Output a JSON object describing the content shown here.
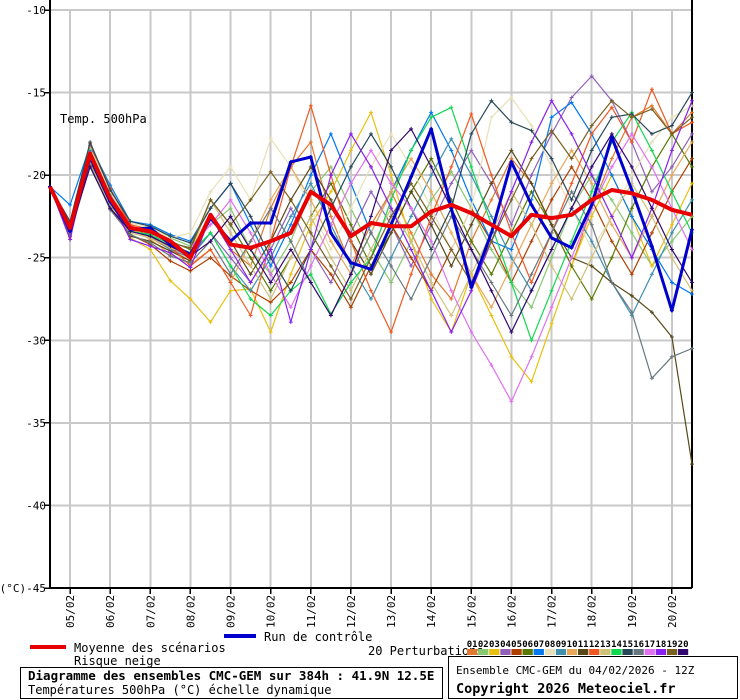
{
  "legend": {
    "mean_label": "Moyenne des scénarios",
    "risk_label": "Risque neige",
    "control_label": "Run de contrôle",
    "perturbations_label": "20 Perturbations"
  },
  "footer": {
    "left_line1": "Diagramme des ensembles CMC-GEM sur 384h : 41.9N 12.5E",
    "left_line2": "Températures 500hPa (°C) échelle dynamique",
    "right_line1": "Ensemble CMC-GEM du 04/02/2026 - 12Z",
    "right_line2": "Copyright 2026 Meteociel.fr"
  },
  "chart_style": {
    "grid_color": "#c9c9c9",
    "axis_color": "#000000",
    "background": "#ffffff",
    "mean_color": "#e80000",
    "control_color": "#0000cc"
  },
  "chart_data": {
    "type": "line",
    "title": "Temp. 500hPa",
    "ylabel_unit": "(°C)",
    "ylim": [
      -45,
      -10
    ],
    "y_ticks": [
      -10,
      -15,
      -20,
      -25,
      -30,
      -35,
      -40,
      -45
    ],
    "x_tick_labels": [
      "05/02",
      "06/02",
      "07/02",
      "08/02",
      "09/02",
      "10/02",
      "11/02",
      "12/02",
      "13/02",
      "14/02",
      "15/02",
      "16/02",
      "17/02",
      "18/02",
      "19/02",
      "20/02"
    ],
    "x_start": "04/02 12Z",
    "x_step_hours": 12,
    "n_points": 33,
    "grid": true,
    "legend_position": "bottom",
    "mean": {
      "name": "Moyenne des scénarios",
      "color": "#e80000",
      "values": [
        -20.7,
        -23.2,
        -18.7,
        -21.4,
        -23.2,
        -23.4,
        -24.0,
        -25.0,
        -22.4,
        -24.2,
        -24.4,
        -24.0,
        -23.5,
        -21.0,
        -21.8,
        -23.7,
        -22.9,
        -23.1,
        -23.1,
        -22.2,
        -21.8,
        -22.3,
        -23.0,
        -23.7,
        -22.4,
        -22.6,
        -22.4,
        -21.5,
        -20.9,
        -21.1,
        -21.5,
        -22.1,
        -22.4
      ]
    },
    "control": {
      "name": "Run de contrôle",
      "color": "#0000cc",
      "values": [
        -20.7,
        -23.4,
        -18.9,
        -21.6,
        -23.3,
        -23.2,
        -24.2,
        -24.8,
        -22.6,
        -24.0,
        -22.9,
        -22.9,
        -19.2,
        -18.9,
        -23.5,
        -25.3,
        -25.7,
        -23.0,
        -20.1,
        -17.2,
        -22.0,
        -26.8,
        -23.5,
        -19.2,
        -21.8,
        -23.8,
        -24.4,
        -21.8,
        -17.7,
        -20.9,
        -24.3,
        -28.2,
        -23.3
      ]
    },
    "members": [
      {
        "id": "01",
        "color": "#e07830",
        "values": [
          -20.7,
          -23.0,
          -18.3,
          -21.0,
          -23.0,
          -23.8,
          -24.5,
          -25.2,
          -22.5,
          -24.5,
          -25.5,
          -22.0,
          -19.5,
          -18.0,
          -22.5,
          -25.5,
          -23.0,
          -21.0,
          -23.5,
          -26.0,
          -27.5,
          -24.0,
          -21.5,
          -19.0,
          -20.5,
          -23.0,
          -25.5,
          -22.0,
          -19.0,
          -16.5,
          -15.8,
          -17.5,
          -16.2
        ]
      },
      {
        "id": "02",
        "color": "#88c870",
        "values": [
          -20.7,
          -23.5,
          -18.8,
          -21.8,
          -23.5,
          -23.0,
          -23.8,
          -24.3,
          -23.0,
          -22.0,
          -24.5,
          -26.0,
          -24.0,
          -21.0,
          -19.5,
          -22.0,
          -24.5,
          -26.5,
          -24.0,
          -21.5,
          -19.8,
          -22.0,
          -24.5,
          -26.5,
          -28.0,
          -25.0,
          -22.0,
          -20.0,
          -21.5,
          -23.5,
          -25.5,
          -24.0,
          -22.5
        ]
      },
      {
        "id": "03",
        "color": "#e8c010",
        "values": [
          -20.7,
          -23.8,
          -19.0,
          -21.6,
          -23.8,
          -24.5,
          -26.4,
          -27.5,
          -28.9,
          -27.0,
          -26.9,
          -29.5,
          -26.0,
          -23.0,
          -21.0,
          -18.5,
          -16.2,
          -20.0,
          -24.0,
          -27.5,
          -29.5,
          -26.0,
          -28.5,
          -31.0,
          -32.5,
          -29.0,
          -25.5,
          -22.5,
          -20.0,
          -22.5,
          -25.5,
          -23.0,
          -20.5
        ]
      },
      {
        "id": "04",
        "color": "#9060b8",
        "values": [
          -20.7,
          -23.1,
          -18.5,
          -21.2,
          -23.1,
          -23.6,
          -24.4,
          -24.9,
          -23.5,
          -25.0,
          -26.5,
          -24.5,
          -22.0,
          -24.5,
          -26.5,
          -23.5,
          -21.0,
          -23.0,
          -25.5,
          -23.0,
          -20.5,
          -18.5,
          -20.5,
          -23.0,
          -20.0,
          -17.5,
          -15.3,
          -14.0,
          -15.5,
          -18.0,
          -21.0,
          -19.5,
          -17.5
        ]
      },
      {
        "id": "05",
        "color": "#b04000",
        "values": [
          -20.7,
          -23.6,
          -19.2,
          -22.0,
          -23.6,
          -24.2,
          -25.2,
          -25.8,
          -25.0,
          -26.1,
          -27.0,
          -27.7,
          -26.5,
          -24.5,
          -26.0,
          -28.0,
          -25.5,
          -23.0,
          -25.0,
          -27.0,
          -24.5,
          -22.0,
          -24.0,
          -26.5,
          -24.0,
          -21.5,
          -19.5,
          -21.5,
          -24.0,
          -26.0,
          -23.5,
          -21.0,
          -19.0
        ]
      },
      {
        "id": "06",
        "color": "#587800",
        "values": [
          -20.7,
          -23.3,
          -18.6,
          -21.3,
          -23.3,
          -23.5,
          -24.0,
          -24.5,
          -21.5,
          -23.0,
          -25.0,
          -27.0,
          -25.0,
          -22.5,
          -20.5,
          -23.0,
          -25.5,
          -23.5,
          -21.0,
          -19.0,
          -21.5,
          -24.0,
          -26.0,
          -23.5,
          -21.0,
          -23.0,
          -25.5,
          -27.5,
          -25.0,
          -22.0,
          -19.5,
          -17.5,
          -19.5
        ]
      },
      {
        "id": "07",
        "color": "#0078f0",
        "values": [
          -20.7,
          -21.8,
          -18.2,
          -20.6,
          -22.8,
          -23.0,
          -23.6,
          -24.0,
          -22.0,
          -20.5,
          -23.0,
          -25.5,
          -23.0,
          -20.0,
          -17.5,
          -20.5,
          -23.5,
          -21.0,
          -18.5,
          -16.2,
          -18.5,
          -21.5,
          -24.0,
          -24.5,
          -21.5,
          -16.5,
          -15.6,
          -17.5,
          -20.0,
          -22.5,
          -24.5,
          -26.5,
          -27.2
        ]
      },
      {
        "id": "08",
        "color": "#e8e0b8",
        "values": [
          -20.7,
          -22.9,
          -18.4,
          -21.0,
          -22.9,
          -23.2,
          -23.8,
          -23.5,
          -21.0,
          -19.5,
          -21.5,
          -17.8,
          -19.5,
          -22.0,
          -24.5,
          -22.0,
          -19.5,
          -17.5,
          -19.5,
          -22.0,
          -24.5,
          -22.0,
          -16.5,
          -15.3,
          -17.0,
          -19.5,
          -22.0,
          -24.5,
          -22.5,
          -20.0,
          -18.0,
          -16.5,
          -15.8
        ]
      },
      {
        "id": "09",
        "color": "#4090b0",
        "values": [
          -20.7,
          -23.4,
          -18.9,
          -21.7,
          -23.4,
          -23.7,
          -24.5,
          -25.0,
          -23.5,
          -25.5,
          -27.0,
          -25.0,
          -22.5,
          -20.5,
          -23.0,
          -25.5,
          -27.5,
          -25.0,
          -22.5,
          -20.0,
          -17.8,
          -20.0,
          -22.5,
          -25.0,
          -27.0,
          -24.5,
          -22.0,
          -24.0,
          -26.5,
          -28.5,
          -26.0,
          -23.5,
          -21.5
        ]
      },
      {
        "id": "10",
        "color": "#e8a858",
        "values": [
          -20.7,
          -23.2,
          -18.7,
          -21.5,
          -23.2,
          -23.9,
          -24.8,
          -25.4,
          -24.5,
          -26.5,
          -24.0,
          -21.5,
          -19.5,
          -21.5,
          -24.0,
          -26.0,
          -23.5,
          -21.0,
          -19.0,
          -21.0,
          -23.5,
          -26.0,
          -28.0,
          -25.5,
          -23.0,
          -20.5,
          -18.5,
          -20.5,
          -23.0,
          -25.0,
          -22.5,
          -20.0,
          -18.0
        ]
      },
      {
        "id": "11",
        "color": "#584818",
        "values": [
          -20.7,
          -23.7,
          -19.1,
          -21.9,
          -23.7,
          -24.0,
          -24.6,
          -25.2,
          -22.5,
          -24.0,
          -26.0,
          -24.0,
          -21.5,
          -19.5,
          -21.5,
          -24.0,
          -26.0,
          -23.5,
          -21.0,
          -23.0,
          -25.5,
          -23.0,
          -20.5,
          -18.5,
          -20.5,
          -23.0,
          -25.0,
          -25.5,
          -26.5,
          -27.3,
          -28.3,
          -29.8,
          -37.5
        ]
      },
      {
        "id": "12",
        "color": "#f05820",
        "values": [
          -20.7,
          -23.0,
          -18.1,
          -20.8,
          -23.0,
          -23.3,
          -24.3,
          -25.5,
          -24.5,
          -26.5,
          -28.5,
          -24.0,
          -19.5,
          -15.8,
          -20.0,
          -24.0,
          -27.0,
          -29.5,
          -26.0,
          -22.5,
          -19.5,
          -16.3,
          -20.0,
          -23.5,
          -26.5,
          -23.5,
          -20.5,
          -17.5,
          -15.9,
          -18.0,
          -14.8,
          -17.5,
          -16.8
        ]
      },
      {
        "id": "13",
        "color": "#d0c078",
        "values": [
          -20.7,
          -23.5,
          -19.3,
          -21.9,
          -23.5,
          -23.8,
          -24.4,
          -24.8,
          -21.5,
          -23.5,
          -25.5,
          -27.5,
          -25.0,
          -22.5,
          -25.0,
          -27.0,
          -24.5,
          -22.0,
          -24.0,
          -26.5,
          -28.5,
          -26.0,
          -23.5,
          -21.0,
          -23.0,
          -25.5,
          -27.5,
          -25.0,
          -22.5,
          -20.5,
          -22.5,
          -25.0,
          -27.0
        ]
      },
      {
        "id": "14",
        "color": "#10d850",
        "values": [
          -20.7,
          -23.3,
          -18.5,
          -21.2,
          -23.4,
          -23.6,
          -24.2,
          -24.7,
          -23.5,
          -25.5,
          -27.5,
          -28.5,
          -27.0,
          -26.0,
          -28.4,
          -26.5,
          -25.0,
          -21.5,
          -18.5,
          -16.5,
          -15.9,
          -19.5,
          -23.0,
          -26.5,
          -30.0,
          -27.0,
          -24.0,
          -21.0,
          -18.0,
          -16.2,
          -18.5,
          -21.0,
          -23.5
        ]
      },
      {
        "id": "15",
        "color": "#284858",
        "values": [
          -20.7,
          -22.8,
          -18.0,
          -20.9,
          -22.8,
          -23.1,
          -23.7,
          -24.1,
          -22.0,
          -20.5,
          -22.5,
          -25.0,
          -27.0,
          -24.5,
          -22.0,
          -19.5,
          -17.5,
          -19.5,
          -22.0,
          -24.5,
          -22.0,
          -17.5,
          -15.5,
          -16.8,
          -17.3,
          -19.0,
          -21.5,
          -18.5,
          -16.5,
          -16.3,
          -17.5,
          -17.0,
          -15.0
        ]
      },
      {
        "id": "16",
        "color": "#687880",
        "values": [
          -20.7,
          -23.6,
          -19.4,
          -22.1,
          -23.6,
          -24.1,
          -24.9,
          -25.3,
          -24.0,
          -26.0,
          -24.0,
          -22.0,
          -24.0,
          -26.5,
          -28.5,
          -26.0,
          -23.5,
          -25.5,
          -27.5,
          -25.0,
          -22.5,
          -24.5,
          -26.5,
          -28.5,
          -26.0,
          -23.5,
          -21.0,
          -23.0,
          -26.5,
          -28.3,
          -32.3,
          -31.0,
          -30.5
        ]
      },
      {
        "id": "17",
        "color": "#e070f0",
        "values": [
          -20.7,
          -23.1,
          -18.8,
          -21.3,
          -23.1,
          -23.4,
          -24.1,
          -24.4,
          -23.0,
          -21.5,
          -23.5,
          -26.0,
          -28.0,
          -25.5,
          -23.0,
          -20.5,
          -18.5,
          -20.5,
          -22.0,
          -24.0,
          -27.0,
          -29.5,
          -31.5,
          -33.7,
          -31.0,
          -28.0,
          -25.0,
          -22.0,
          -19.5,
          -17.5,
          -19.5,
          -22.0,
          -24.5
        ]
      },
      {
        "id": "18",
        "color": "#8820f0",
        "values": [
          -20.7,
          -23.9,
          -18.6,
          -21.5,
          -23.9,
          -24.3,
          -24.7,
          -25.6,
          -22.5,
          -24.5,
          -26.5,
          -24.5,
          -28.9,
          -24.5,
          -20.0,
          -17.5,
          -19.5,
          -22.0,
          -24.5,
          -27.0,
          -29.5,
          -27.0,
          -24.0,
          -21.0,
          -18.0,
          -15.5,
          -17.5,
          -20.0,
          -22.5,
          -25.0,
          -22.0,
          -18.5,
          -15.5
        ]
      },
      {
        "id": "19",
        "color": "#786020",
        "values": [
          -20.7,
          -23.2,
          -18.9,
          -21.4,
          -23.2,
          -23.5,
          -24.1,
          -24.4,
          -21.5,
          -23.0,
          -21.5,
          -19.8,
          -21.5,
          -23.5,
          -25.5,
          -27.5,
          -25.0,
          -22.5,
          -20.5,
          -22.5,
          -24.5,
          -26.5,
          -24.0,
          -21.5,
          -19.0,
          -17.3,
          -19.0,
          -17.0,
          -15.5,
          -16.5,
          -16.0,
          -17.5,
          -16.5
        ]
      },
      {
        "id": "20",
        "color": "#300870",
        "values": [
          -20.7,
          -23.4,
          -19.5,
          -22.0,
          -23.4,
          -23.7,
          -24.3,
          -24.9,
          -24.0,
          -22.5,
          -24.5,
          -26.5,
          -24.5,
          -26.5,
          -28.5,
          -26.0,
          -22.5,
          -18.5,
          -17.2,
          -19.5,
          -22.0,
          -24.5,
          -27.0,
          -29.5,
          -27.0,
          -24.5,
          -22.0,
          -19.5,
          -17.5,
          -19.5,
          -22.0,
          -24.5,
          -26.5
        ]
      }
    ]
  }
}
